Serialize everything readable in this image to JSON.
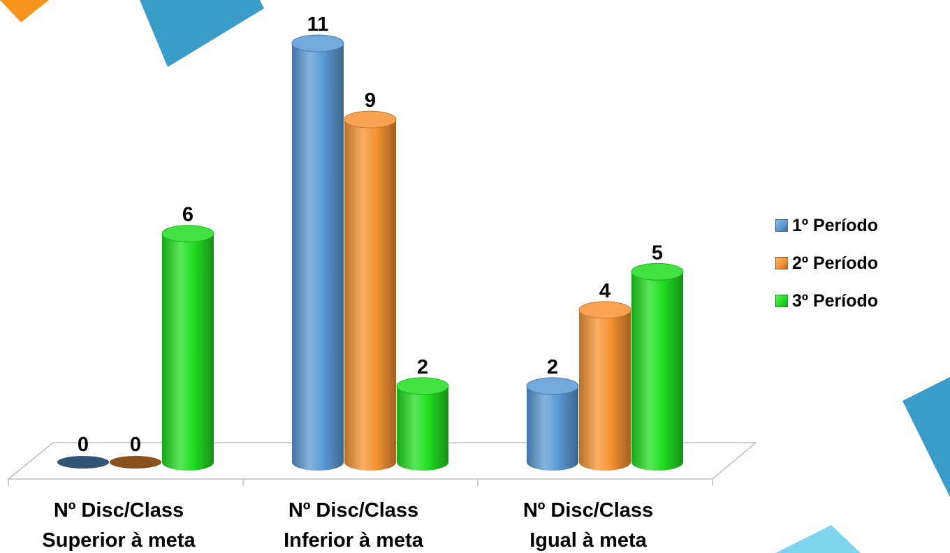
{
  "chart_data": {
    "type": "bar",
    "style": "3d-cylinder",
    "categories": [
      [
        "Nº Disc/Class",
        "Superior à meta"
      ],
      [
        "Nº Disc/Class",
        "Inferior à meta"
      ],
      [
        "Nº Disc/Class",
        "Igual à meta"
      ]
    ],
    "series": [
      {
        "name": "1º Período",
        "color": "#5b9bd5",
        "values": [
          0,
          11,
          2
        ]
      },
      {
        "name": "2º Período",
        "color": "#f79433",
        "values": [
          0,
          9,
          4
        ]
      },
      {
        "name": "3º Período",
        "color": "#22dd22",
        "values": [
          6,
          2,
          5
        ]
      }
    ],
    "ylim": [
      0,
      11
    ],
    "grid": false,
    "legend_position": "right",
    "data_labels": true
  },
  "decor": {
    "shape_colors": [
      "#f7941d",
      "#3a9cc8",
      "#7fd4ee"
    ]
  }
}
